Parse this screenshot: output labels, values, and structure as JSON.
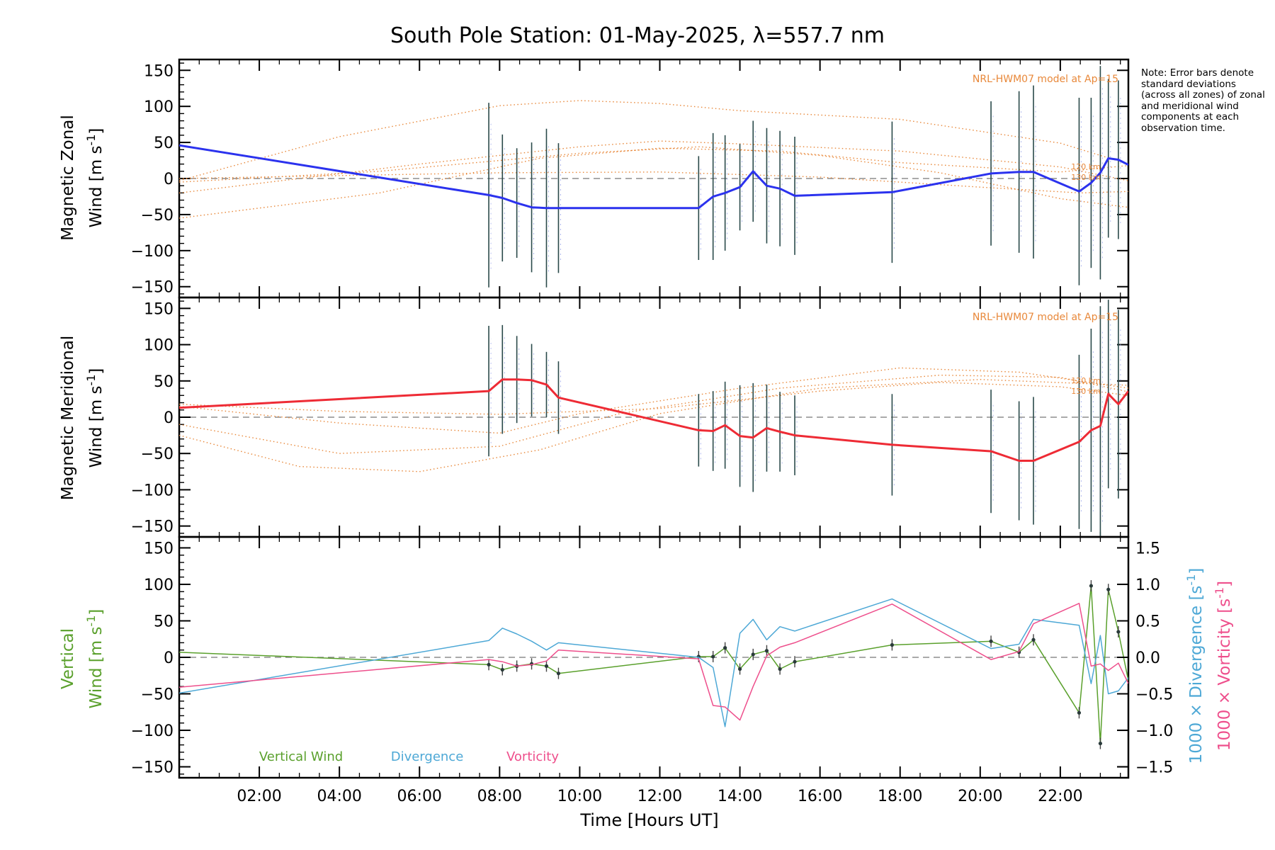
{
  "colors": {
    "zonal": "#2b32ee",
    "meridional": "#ee2b35",
    "vertical": "#5aa02c",
    "divergence": "#4da8d6",
    "vorticity": "#ee4f8c",
    "model": "#e8883a",
    "errorbar": "#2a4a4a"
  },
  "note_text": "Note: Error bars denote standard deviations (across all zones) of zonal and meridional wind components at each observation time.",
  "chart_data": [
    {
      "id": "zonal",
      "type": "line",
      "title": "South Pole Station: 01-May-2025, λ=557.7 nm",
      "ylabel_line1": "Magnetic Zonal",
      "ylabel_line2": "Wind [m s",
      "ylabel_unit_exp": "-1",
      "ylabel_close": "]",
      "ylim": [
        -165,
        165
      ],
      "yticks": [
        -150,
        -100,
        -50,
        0,
        50,
        100,
        150
      ],
      "xlim": [
        0.0,
        23.7
      ],
      "model_label": "NRL-HWM07 model at Ap=15",
      "model_alt_labels": [
        "120 km",
        "130 km"
      ],
      "series": [
        {
          "name": "Magnetic Zonal Wind",
          "x": [
            0.0,
            7.73,
            8.07,
            8.43,
            8.8,
            9.17,
            9.47,
            12.97,
            13.33,
            13.63,
            14.0,
            14.33,
            14.67,
            15.0,
            15.37,
            17.8,
            20.27,
            20.97,
            21.33,
            22.47,
            22.77,
            23.0,
            23.2,
            23.45,
            23.7
          ],
          "y": [
            46,
            -23,
            -27,
            -34,
            -40,
            -41,
            -41,
            -41,
            -25,
            -20,
            -12,
            10,
            -10,
            -14,
            -24,
            -19,
            7,
            9,
            9,
            -18,
            -6,
            8,
            28,
            26,
            19
          ],
          "err": [
            0,
            128,
            88,
            76,
            90,
            110,
            90,
            72,
            88,
            80,
            60,
            70,
            80,
            80,
            82,
            98,
            100,
            112,
            120,
            130,
            118,
            148,
            110,
            110,
            0
          ]
        }
      ],
      "model_curves": [
        {
          "x": [
            0,
            4,
            8,
            10,
            12,
            14,
            18,
            22,
            23.7
          ],
          "y": [
            -3,
            58,
            101,
            108,
            104,
            94,
            82,
            49,
            20
          ]
        },
        {
          "x": [
            0,
            6,
            10,
            12,
            14,
            18,
            22,
            23.7
          ],
          "y": [
            -20,
            20,
            44,
            52,
            48,
            38,
            16,
            -3
          ]
        },
        {
          "x": [
            0,
            5,
            9,
            12,
            15,
            18,
            22,
            23.7
          ],
          "y": [
            -55,
            -20,
            28,
            42,
            38,
            22,
            9,
            18
          ]
        },
        {
          "x": [
            0,
            5,
            10,
            13,
            16,
            19,
            22,
            23.7
          ],
          "y": [
            -5,
            10,
            35,
            44,
            32,
            8,
            -28,
            -40
          ]
        },
        {
          "x": [
            0,
            4,
            8,
            12,
            16,
            20,
            22.5,
            23.7
          ],
          "y": [
            0,
            4,
            8,
            9,
            2,
            -12,
            -20,
            -18
          ]
        }
      ]
    },
    {
      "id": "meridional",
      "type": "line",
      "ylabel_line1": "Magnetic Meridional",
      "ylabel_line2": "Wind [m s",
      "ylabel_unit_exp": "-1",
      "ylabel_close": "]",
      "ylim": [
        -165,
        165
      ],
      "yticks": [
        -150,
        -100,
        -50,
        0,
        50,
        100,
        150
      ],
      "xlim": [
        0.0,
        23.7
      ],
      "model_label": "NRL-HWM07 model at Ap=15",
      "model_alt_labels": [
        "120 km",
        "130 km"
      ],
      "series": [
        {
          "name": "Magnetic Meridional Wind",
          "x": [
            0.0,
            7.73,
            8.07,
            8.43,
            8.8,
            9.17,
            9.47,
            12.97,
            13.33,
            13.63,
            14.0,
            14.33,
            14.67,
            15.0,
            15.37,
            17.8,
            20.27,
            20.97,
            21.33,
            22.47,
            22.77,
            23.0,
            23.2,
            23.45,
            23.7
          ],
          "y": [
            13,
            36,
            52,
            52,
            51,
            45,
            27,
            -18,
            -19,
            -11,
            -26,
            -28,
            -15,
            -20,
            -25,
            -38,
            -47,
            -60,
            -60,
            -34,
            -18,
            -12,
            32,
            18,
            36
          ],
          "err": [
            0,
            90,
            75,
            60,
            50,
            45,
            50,
            50,
            55,
            60,
            70,
            75,
            60,
            55,
            55,
            70,
            85,
            82,
            88,
            120,
            140,
            165,
            130,
            130,
            0
          ]
        }
      ],
      "model_curves": [
        {
          "x": [
            0,
            4,
            8,
            10,
            14,
            18,
            21,
            23.7
          ],
          "y": [
            15,
            -8,
            -22,
            5,
            40,
            68,
            62,
            40
          ]
        },
        {
          "x": [
            0,
            4,
            8,
            11,
            15,
            19,
            22,
            23.7
          ],
          "y": [
            -10,
            -50,
            -40,
            5,
            40,
            58,
            55,
            35
          ]
        },
        {
          "x": [
            0,
            3,
            6,
            9,
            12,
            16,
            20,
            23.7
          ],
          "y": [
            -25,
            -68,
            -75,
            -45,
            5,
            40,
            52,
            44
          ]
        },
        {
          "x": [
            0,
            4,
            8,
            12,
            16,
            19,
            22,
            23.7
          ],
          "y": [
            18,
            8,
            4,
            12,
            36,
            48,
            42,
            30
          ]
        }
      ]
    },
    {
      "id": "vertical",
      "type": "line",
      "title": "",
      "xlabel": "Time [Hours UT]",
      "xticks": [
        2,
        4,
        6,
        8,
        10,
        12,
        14,
        16,
        18,
        20,
        22
      ],
      "xtick_labels": [
        "02:00",
        "04:00",
        "06:00",
        "08:00",
        "10:00",
        "12:00",
        "14:00",
        "16:00",
        "18:00",
        "20:00",
        "22:00"
      ],
      "xlim": [
        0.0,
        23.7
      ],
      "ylim": [
        -165,
        165
      ],
      "yticks": [
        -150,
        -100,
        -50,
        0,
        50,
        100,
        150
      ],
      "ylabel_line1": "Vertical",
      "ylabel_line2": "Wind [m s",
      "ylabel_unit_exp": "-1",
      "ylabel_close": "]",
      "y2lim": [
        -1.65,
        1.65
      ],
      "y2ticks": [
        1.5,
        1.0,
        0.5,
        0.0,
        -0.5,
        -1.0,
        -1.5
      ],
      "y2tick_labels": [
        "1.5",
        "1.0",
        "0.5",
        "0.0",
        "−0.5",
        "−1.0",
        "−1.5"
      ],
      "y2label_div": "1000 × Divergence [s",
      "y2label_vor": "1000 × Vorticity [s",
      "y2label_exp": "-1",
      "y2label_close": "]",
      "legend": [
        "Vertical Wind",
        "Divergence",
        "Vorticity"
      ],
      "series": [
        {
          "name": "Vertical Wind",
          "axis": "left",
          "x": [
            0.0,
            7.73,
            8.07,
            8.43,
            8.8,
            9.17,
            9.47,
            12.97,
            13.33,
            13.63,
            14.0,
            14.33,
            14.67,
            15.0,
            15.37,
            17.8,
            20.27,
            20.97,
            21.33,
            22.47,
            22.77,
            23.0,
            23.2,
            23.45,
            23.7
          ],
          "y": [
            7,
            -10,
            -17,
            -12,
            -9,
            -12,
            -22,
            1,
            1,
            13,
            -16,
            4,
            9,
            -16,
            -6,
            17,
            22,
            7,
            24,
            -76,
            98,
            -118,
            93,
            35,
            -32
          ]
        },
        {
          "name": "Divergence",
          "axis": "right",
          "x": [
            0.0,
            7.73,
            8.07,
            8.43,
            8.8,
            9.17,
            9.47,
            12.97,
            13.33,
            13.63,
            14.0,
            14.33,
            14.67,
            15.0,
            15.37,
            17.8,
            20.27,
            20.97,
            21.33,
            22.47,
            22.77,
            23.0,
            23.2,
            23.45,
            23.7
          ],
          "y": [
            -0.49,
            0.23,
            0.4,
            0.32,
            0.22,
            0.1,
            0.2,
            0.0,
            -0.14,
            -0.95,
            0.33,
            0.52,
            0.24,
            0.42,
            0.36,
            0.8,
            0.12,
            0.18,
            0.52,
            0.44,
            -0.36,
            0.3,
            -0.5,
            -0.46,
            -0.28
          ]
        },
        {
          "name": "Vorticity",
          "axis": "right",
          "x": [
            0.0,
            7.73,
            8.07,
            8.43,
            8.8,
            9.17,
            9.47,
            12.97,
            13.33,
            13.63,
            14.0,
            14.33,
            14.67,
            15.0,
            15.37,
            17.8,
            20.27,
            20.97,
            21.33,
            22.47,
            22.77,
            23.0,
            23.2,
            23.45,
            23.7
          ],
          "y": [
            -0.41,
            -0.03,
            -0.06,
            -0.12,
            -0.1,
            -0.05,
            0.1,
            -0.02,
            -0.66,
            -0.68,
            -0.86,
            -0.4,
            0.02,
            0.14,
            0.2,
            0.73,
            -0.03,
            0.08,
            0.46,
            0.74,
            -0.12,
            -0.09,
            -0.18,
            -0.08,
            -0.36
          ]
        }
      ]
    }
  ]
}
